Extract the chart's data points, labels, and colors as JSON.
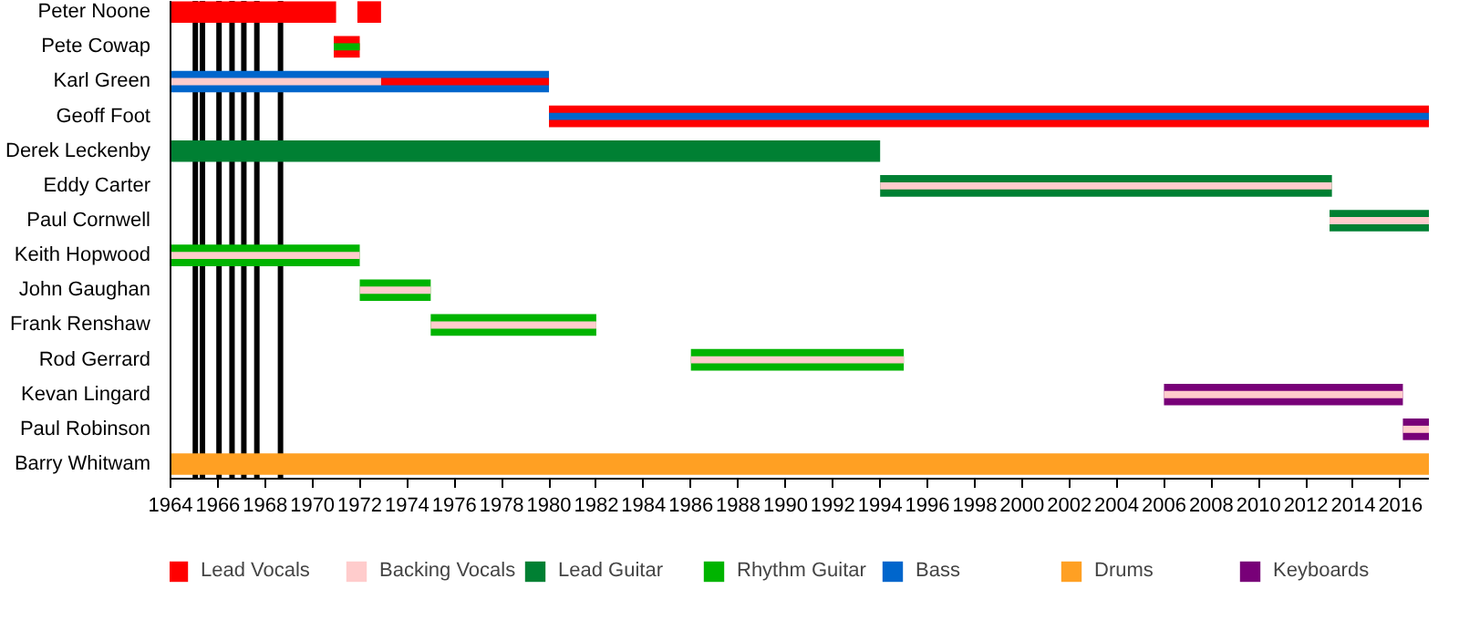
{
  "chart_data": {
    "type": "bar",
    "orientation": "horizontal",
    "categories": [
      "Peter Noone",
      "Pete Cowap",
      "Karl Green",
      "Geoff Foot",
      "Derek Leckenby",
      "Eddy Carter",
      "Paul Cornwell",
      "Keith Hopwood",
      "John Gaughan",
      "Frank Renshaw",
      "Rod Gerrard",
      "Kevan Lingard",
      "Paul Robinson",
      "Barry Whitwam"
    ],
    "xlim": [
      1964,
      2017.2
    ],
    "xticks": [
      1964,
      1966,
      1968,
      1970,
      1972,
      1974,
      1976,
      1978,
      1980,
      1982,
      1984,
      1986,
      1988,
      1990,
      1992,
      1994,
      1996,
      1998,
      2000,
      2002,
      2004,
      2006,
      2008,
      2010,
      2012,
      2014,
      2016
    ],
    "grid": false,
    "legend": "bottom",
    "series": [
      {
        "name": "Lead Vocals",
        "color": "#ff0000",
        "base": [
          1964,
          null,
          1972.9,
          null,
          null,
          null,
          null,
          null,
          null,
          null,
          null,
          null,
          null,
          null
        ],
        "values": [
          7,
          null,
          7.1,
          null,
          null,
          null,
          null,
          null,
          null,
          null,
          null,
          null,
          null,
          null
        ]
      },
      {
        "name": "Backing Vocals",
        "color": "#ffcccc",
        "base": [
          null,
          null,
          1964,
          null,
          null,
          1994,
          2013,
          1964,
          1972,
          1975,
          1986,
          2006,
          2016.1,
          null
        ],
        "values": [
          null,
          null,
          8.9,
          null,
          null,
          19.1,
          4.2,
          8,
          3,
          7,
          9,
          10.1,
          1.1,
          null
        ]
      },
      {
        "name": "Lead Guitar",
        "color": "#008033",
        "base": [
          null,
          null,
          null,
          null,
          1964,
          1994,
          2013,
          null,
          null,
          null,
          null,
          null,
          null,
          null
        ],
        "values": [
          null,
          null,
          null,
          null,
          30,
          19.1,
          4.2,
          null,
          null,
          null,
          null,
          null,
          null,
          null
        ]
      },
      {
        "name": "Rhythm Guitar",
        "color": "#00b400",
        "base": [
          null,
          1970.9,
          null,
          null,
          null,
          null,
          null,
          1964,
          1972,
          1975,
          1986,
          null,
          null,
          null
        ],
        "values": [
          null,
          1.1,
          null,
          null,
          null,
          null,
          null,
          8,
          3,
          7,
          9,
          null,
          null,
          null
        ]
      },
      {
        "name": "Bass",
        "color": "#0066cc",
        "base": [
          null,
          null,
          1964,
          1980,
          null,
          null,
          null,
          null,
          null,
          null,
          null,
          null,
          null,
          null
        ],
        "values": [
          null,
          null,
          16,
          37.2,
          null,
          null,
          null,
          null,
          null,
          null,
          null,
          null,
          null,
          null
        ]
      },
      {
        "name": "Drums",
        "color": "#ffa023",
        "base": [
          null,
          null,
          null,
          null,
          null,
          null,
          null,
          null,
          null,
          null,
          null,
          null,
          null,
          1964
        ],
        "values": [
          null,
          null,
          null,
          null,
          null,
          null,
          null,
          null,
          null,
          null,
          null,
          null,
          null,
          53.2
        ]
      },
      {
        "name": "Keyboards",
        "color": "#780078",
        "base": [
          null,
          null,
          null,
          null,
          null,
          null,
          null,
          null,
          null,
          null,
          null,
          2006,
          2016.1,
          null
        ],
        "values": [
          null,
          null,
          null,
          null,
          null,
          null,
          null,
          null,
          null,
          null,
          null,
          10.1,
          1.1,
          null
        ]
      },
      {
        "color": "#ff0000",
        "base": [
          1971.9,
          1970.9,
          null,
          1980,
          null,
          null,
          null,
          null,
          null,
          null,
          null,
          null,
          null,
          null
        ],
        "values": [
          1.0,
          1.1,
          null,
          37.2,
          null,
          null,
          null,
          null,
          null,
          null,
          null,
          null,
          null,
          null
        ]
      }
    ],
    "ref_lines": [
      {
        "axis": "x",
        "value": 1965.05,
        "color": "#000000"
      },
      {
        "axis": "x",
        "value": 1965.35,
        "color": "#000000"
      },
      {
        "axis": "x",
        "value": 1966.05,
        "color": "#000000"
      },
      {
        "axis": "x",
        "value": 1966.6,
        "color": "#000000"
      },
      {
        "axis": "x",
        "value": 1967.1,
        "color": "#000000"
      },
      {
        "axis": "x",
        "value": 1967.65,
        "color": "#000000"
      },
      {
        "axis": "x",
        "value": 1968.65,
        "color": "#000000"
      }
    ]
  }
}
